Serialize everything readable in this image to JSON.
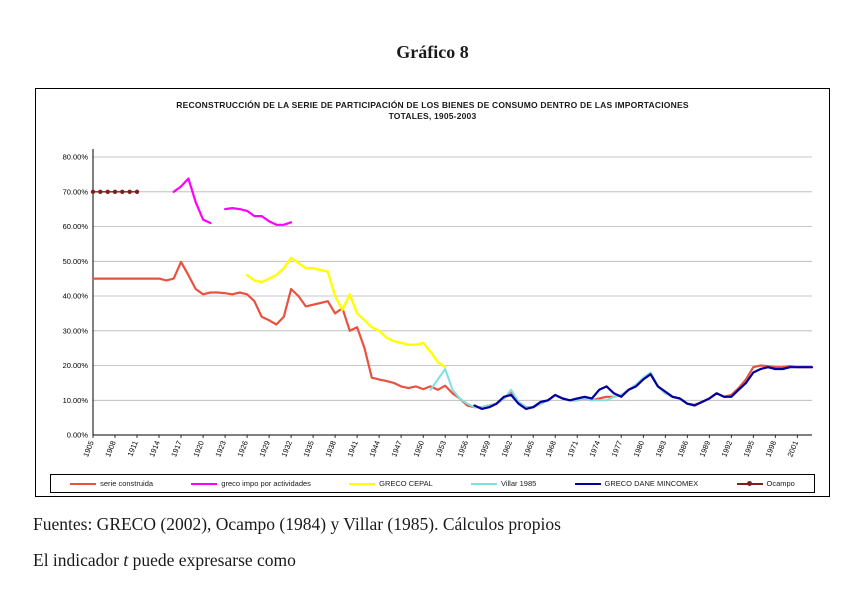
{
  "page": {
    "heading": "Gráfico 8",
    "source_line": "Fuentes: GRECO (2002), Ocampo (1984) y Villar (1985). Cálculos propios",
    "body_prefix": "El indicador ",
    "body_italic": "t",
    "body_suffix": " puede expresarse como"
  },
  "chart_data": {
    "type": "line",
    "title_line1": "RECONSTRUCCIÓN DE LA SERIE DE PARTICIPACIÓN DE LOS BIENES DE CONSUMO DENTRO DE LAS IMPORTACIONES",
    "title_line2": "TOTALES, 1905-2003",
    "grid": true,
    "legend_position": "bottom",
    "ylim": [
      0,
      80
    ],
    "ytick_values": [
      0,
      10,
      20,
      30,
      40,
      50,
      60,
      70,
      80
    ],
    "ytick_labels": [
      "0.00%",
      "10.00%",
      "20.00%",
      "30.00%",
      "40.00%",
      "50.00%",
      "60.00%",
      "70.00%",
      "80.00%"
    ],
    "x_range": [
      1905,
      2003
    ],
    "xticks": [
      1905,
      1908,
      1911,
      1914,
      1917,
      1920,
      1923,
      1926,
      1929,
      1932,
      1935,
      1938,
      1941,
      1944,
      1947,
      1950,
      1953,
      1956,
      1959,
      1962,
      1965,
      1968,
      1971,
      1974,
      1977,
      1980,
      1983,
      1986,
      1989,
      1992,
      1995,
      1998,
      2001
    ],
    "series": [
      {
        "name": "serie construida",
        "color": "#e8523f",
        "width": 2.2,
        "marker": false,
        "points": [
          [
            1905,
            45
          ],
          [
            1906,
            45
          ],
          [
            1907,
            45
          ],
          [
            1908,
            45
          ],
          [
            1909,
            45
          ],
          [
            1910,
            45
          ],
          [
            1911,
            45
          ],
          [
            1912,
            45
          ],
          [
            1913,
            45
          ],
          [
            1914,
            45
          ],
          [
            1915,
            44.5
          ],
          [
            1916,
            45
          ],
          [
            1917,
            49.8
          ],
          [
            1918,
            46
          ],
          [
            1919,
            42
          ],
          [
            1920,
            40.5
          ],
          [
            1921,
            41
          ],
          [
            1922,
            41
          ],
          [
            1923,
            40.8
          ],
          [
            1924,
            40.5
          ],
          [
            1925,
            41
          ],
          [
            1926,
            40.5
          ],
          [
            1927,
            38.5
          ],
          [
            1928,
            34
          ],
          [
            1929,
            33
          ],
          [
            1930,
            31.8
          ],
          [
            1931,
            34
          ],
          [
            1932,
            42
          ],
          [
            1933,
            40
          ],
          [
            1934,
            37
          ],
          [
            1935,
            37.5
          ],
          [
            1936,
            38
          ],
          [
            1937,
            38.5
          ],
          [
            1938,
            35
          ],
          [
            1939,
            36.5
          ],
          [
            1940,
            30
          ],
          [
            1941,
            31
          ],
          [
            1942,
            25
          ],
          [
            1943,
            16.5
          ],
          [
            1944,
            16
          ],
          [
            1945,
            15.5
          ],
          [
            1946,
            15
          ],
          [
            1947,
            14
          ],
          [
            1948,
            13.5
          ],
          [
            1949,
            14
          ],
          [
            1950,
            13.2
          ],
          [
            1951,
            14
          ],
          [
            1952,
            13
          ],
          [
            1953,
            14.2
          ],
          [
            1954,
            12
          ],
          [
            1955,
            10.5
          ],
          [
            1956,
            8.5
          ],
          [
            1957,
            8
          ],
          [
            1958,
            8
          ],
          [
            1959,
            8.5
          ],
          [
            1960,
            9
          ],
          [
            1961,
            10.5
          ],
          [
            1962,
            12.5
          ],
          [
            1963,
            9.5
          ],
          [
            1964,
            8
          ],
          [
            1965,
            8
          ],
          [
            1966,
            9
          ],
          [
            1967,
            10
          ],
          [
            1968,
            11.5
          ],
          [
            1969,
            10.5
          ],
          [
            1970,
            10
          ],
          [
            1971,
            10
          ],
          [
            1972,
            10.5
          ],
          [
            1973,
            10
          ],
          [
            1974,
            10.5
          ],
          [
            1975,
            11
          ],
          [
            1976,
            11
          ],
          [
            1977,
            11.5
          ],
          [
            1978,
            13
          ],
          [
            1979,
            14
          ],
          [
            1980,
            16
          ],
          [
            1981,
            17.5
          ],
          [
            1982,
            14
          ],
          [
            1983,
            12
          ],
          [
            1984,
            11
          ],
          [
            1985,
            10.5
          ],
          [
            1986,
            9
          ],
          [
            1987,
            8.7
          ],
          [
            1988,
            9.5
          ],
          [
            1989,
            10.5
          ],
          [
            1990,
            12
          ],
          [
            1991,
            11
          ],
          [
            1992,
            11.5
          ],
          [
            1993,
            13.5
          ],
          [
            1994,
            16
          ],
          [
            1995,
            19.5
          ],
          [
            1996,
            20
          ],
          [
            1997,
            19.8
          ],
          [
            1998,
            19.5
          ],
          [
            1999,
            19.5
          ],
          [
            2000,
            19.8
          ],
          [
            2001,
            19.5
          ],
          [
            2002,
            19.5
          ],
          [
            2003,
            19.5
          ]
        ]
      },
      {
        "name": "greco impo por actividades",
        "color": "#ff00ff",
        "width": 2.2,
        "marker": false,
        "points": [
          [
            1916,
            70
          ],
          [
            1917,
            71.5
          ],
          [
            1918,
            73.8
          ],
          [
            1919,
            67
          ],
          [
            1920,
            62
          ],
          [
            1921,
            61
          ],
          [
            1922,
            null
          ],
          [
            1923,
            65
          ],
          [
            1924,
            65.3
          ],
          [
            1925,
            65
          ],
          [
            1926,
            64.5
          ],
          [
            1927,
            63
          ],
          [
            1928,
            63
          ],
          [
            1929,
            61.5
          ],
          [
            1930,
            60.5
          ],
          [
            1931,
            60.5
          ],
          [
            1932,
            61.2
          ]
        ]
      },
      {
        "name": "GRECO CEPAL",
        "color": "#ffff00",
        "width": 2.4,
        "marker": false,
        "points": [
          [
            1926,
            46
          ],
          [
            1927,
            44.5
          ],
          [
            1928,
            44
          ],
          [
            1929,
            45
          ],
          [
            1930,
            46
          ],
          [
            1931,
            48
          ],
          [
            1932,
            51
          ],
          [
            1933,
            49.5
          ],
          [
            1934,
            48
          ],
          [
            1935,
            48
          ],
          [
            1936,
            47.5
          ],
          [
            1937,
            47
          ],
          [
            1938,
            40
          ],
          [
            1939,
            36
          ],
          [
            1940,
            40.5
          ],
          [
            1941,
            35
          ],
          [
            1942,
            33
          ],
          [
            1943,
            31
          ],
          [
            1944,
            30
          ],
          [
            1945,
            28
          ],
          [
            1946,
            27
          ],
          [
            1947,
            26.5
          ],
          [
            1948,
            26
          ],
          [
            1949,
            26
          ],
          [
            1950,
            26.5
          ],
          [
            1951,
            24
          ],
          [
            1952,
            21
          ],
          [
            1953,
            19.5
          ]
        ]
      },
      {
        "name": "Villar 1985",
        "color": "#7fe0e0",
        "width": 2,
        "marker": false,
        "points": [
          [
            1951,
            13
          ],
          [
            1952,
            16
          ],
          [
            1953,
            19
          ],
          [
            1954,
            13
          ],
          [
            1955,
            10.5
          ],
          [
            1956,
            9
          ],
          [
            1957,
            8
          ],
          [
            1958,
            8
          ],
          [
            1959,
            8.5
          ],
          [
            1960,
            9
          ],
          [
            1961,
            10.5
          ],
          [
            1962,
            13
          ],
          [
            1963,
            9.5
          ],
          [
            1964,
            8
          ],
          [
            1965,
            8
          ],
          [
            1966,
            9
          ],
          [
            1967,
            10
          ],
          [
            1968,
            11.5
          ],
          [
            1969,
            10.5
          ],
          [
            1970,
            10
          ],
          [
            1971,
            10
          ],
          [
            1972,
            10.5
          ],
          [
            1973,
            10
          ],
          [
            1974,
            10
          ],
          [
            1975,
            10
          ],
          [
            1976,
            11
          ],
          [
            1977,
            11.5
          ],
          [
            1978,
            13
          ],
          [
            1979,
            14.5
          ],
          [
            1980,
            16.5
          ],
          [
            1981,
            18
          ],
          [
            1982,
            14
          ],
          [
            1983,
            12
          ],
          [
            1984,
            11
          ]
        ]
      },
      {
        "name": "GRECO DANE MINCOMEX",
        "color": "#0000a0",
        "width": 2.2,
        "marker": false,
        "points": [
          [
            1957,
            8.5
          ],
          [
            1958,
            7.5
          ],
          [
            1959,
            8
          ],
          [
            1960,
            9
          ],
          [
            1961,
            11
          ],
          [
            1962,
            11.5
          ],
          [
            1963,
            9
          ],
          [
            1964,
            7.5
          ],
          [
            1965,
            8
          ],
          [
            1966,
            9.5
          ],
          [
            1967,
            10
          ],
          [
            1968,
            11.5
          ],
          [
            1969,
            10.5
          ],
          [
            1970,
            10
          ],
          [
            1971,
            10.5
          ],
          [
            1972,
            11
          ],
          [
            1973,
            10.5
          ],
          [
            1974,
            13
          ],
          [
            1975,
            14
          ],
          [
            1976,
            12
          ],
          [
            1977,
            11
          ],
          [
            1978,
            13
          ],
          [
            1979,
            14
          ],
          [
            1980,
            16
          ],
          [
            1981,
            17.5
          ],
          [
            1982,
            14
          ],
          [
            1983,
            12.5
          ],
          [
            1984,
            11
          ],
          [
            1985,
            10.5
          ],
          [
            1986,
            9
          ],
          [
            1987,
            8.5
          ],
          [
            1988,
            9.5
          ],
          [
            1989,
            10.5
          ],
          [
            1990,
            12
          ],
          [
            1991,
            11
          ],
          [
            1992,
            11
          ],
          [
            1993,
            13
          ],
          [
            1994,
            15
          ],
          [
            1995,
            18
          ],
          [
            1996,
            19
          ],
          [
            1997,
            19.5
          ],
          [
            1998,
            19
          ],
          [
            1999,
            19
          ],
          [
            2000,
            19.5
          ],
          [
            2001,
            19.5
          ],
          [
            2002,
            19.5
          ],
          [
            2003,
            19.5
          ]
        ]
      },
      {
        "name": "Ocampo",
        "color": "#7f1f1f",
        "width": 1.4,
        "marker": true,
        "points": [
          [
            1905,
            70
          ],
          [
            1906,
            70
          ],
          [
            1907,
            70
          ],
          [
            1908,
            70
          ],
          [
            1909,
            70
          ],
          [
            1910,
            70
          ],
          [
            1911,
            70
          ]
        ]
      }
    ]
  }
}
